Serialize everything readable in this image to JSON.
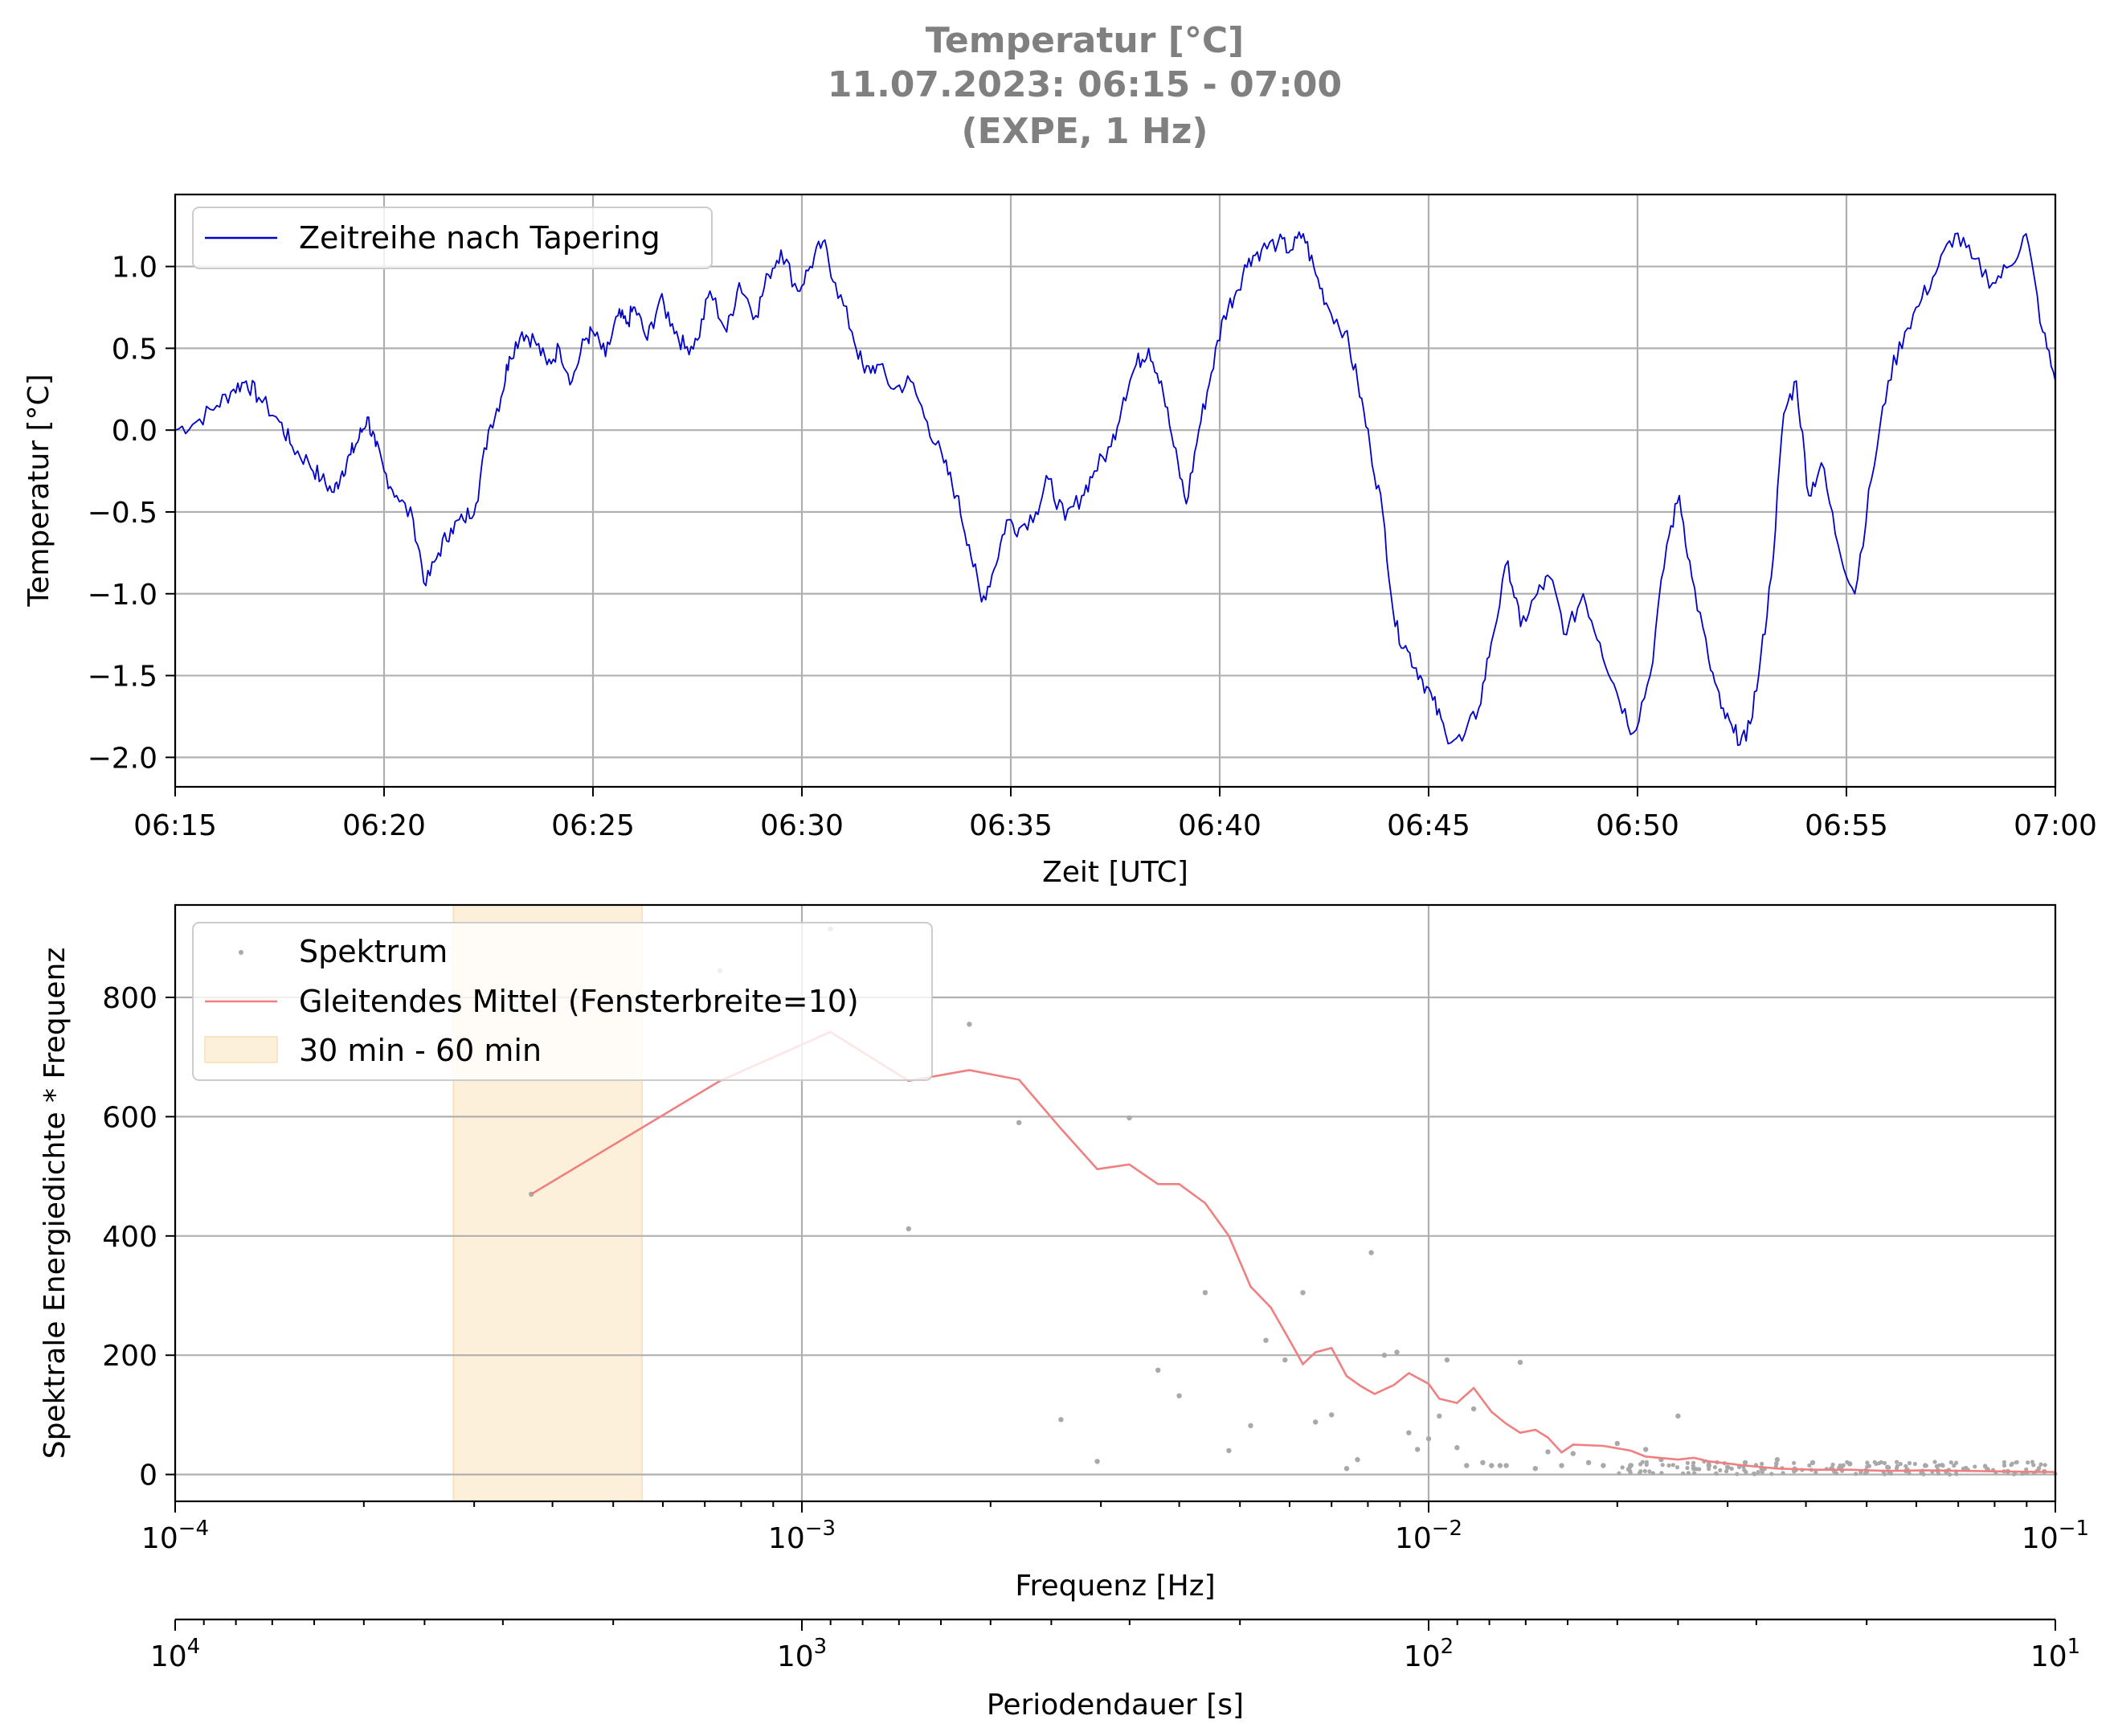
{
  "title_lines": [
    "Temperatur [°C]",
    "11.07.2023:  06:15 -  07:00",
    "(EXPE, 1 Hz)"
  ],
  "colors": {
    "title": "#808080",
    "timeseries": "#0000cd",
    "spectrum_points": "#a9a9a9",
    "moving_average": "#f08080",
    "band": "#fdf0da",
    "grid": "#b0b0b0"
  },
  "chart_data": [
    {
      "type": "line",
      "title": "Temperatur [°C]",
      "xlabel": "Zeit [UTC]",
      "ylabel": "Temperatur [°C]",
      "xlim": [
        "06:15",
        "07:00"
      ],
      "ylim": [
        -2.18,
        1.44
      ],
      "xticks": [
        "06:15",
        "06:20",
        "06:25",
        "06:30",
        "06:35",
        "06:40",
        "06:45",
        "06:50",
        "06:55",
        "07:00"
      ],
      "yticks": [
        1.0,
        0.5,
        0.0,
        -0.5,
        -1.0,
        -1.5,
        -2.0
      ],
      "ytick_labels": [
        "1.0",
        "0.5",
        "0.0",
        "−0.5",
        "−1.0",
        "−1.5",
        "−2.0"
      ],
      "grid": true,
      "legend_position": "upper-left",
      "series": [
        {
          "name": "Zeitreihe nach Tapering",
          "color": "#0000cd",
          "x_minutes_from_0615": [
            0,
            0.5,
            1.0,
            1.4,
            1.7,
            2.0,
            2.5,
            2.8,
            3.2,
            3.5,
            3.8,
            4.0,
            4.2,
            4.4,
            4.6,
            4.8,
            5.0,
            5.3,
            5.7,
            6.0,
            6.3,
            6.6,
            6.9,
            7.2,
            7.5,
            7.8,
            8.0,
            8.3,
            8.6,
            8.9,
            9.2,
            9.5,
            9.8,
            10.0,
            10.3,
            10.6,
            10.8,
            11.0,
            11.3,
            11.6,
            11.9,
            12.2,
            12.5,
            12.8,
            13.2,
            13.5,
            13.9,
            14.2,
            14.5,
            14.9,
            15.2,
            15.5,
            15.8,
            16.2,
            16.5,
            16.8,
            17.2,
            17.6,
            18.0,
            18.4,
            18.7,
            19.0,
            19.3,
            19.6,
            19.9,
            20.2,
            20.6,
            20.9,
            21.3,
            21.7,
            22.0,
            22.4,
            22.7,
            23.0,
            23.3,
            23.6,
            23.9,
            24.2,
            24.5,
            24.8,
            25.1,
            25.4,
            25.7,
            26.0,
            26.4,
            26.7,
            27.0,
            27.3,
            27.6,
            28.0,
            28.3,
            28.6,
            28.9,
            29.2,
            29.5,
            29.8,
            30.1,
            30.4,
            30.8,
            31.2,
            31.5,
            31.9,
            32.2,
            32.6,
            32.9,
            33.3,
            33.7,
            34.1,
            34.5,
            34.9,
            35.3,
            35.7,
            36.0,
            36.3,
            36.7,
            37.0,
            37.3,
            37.6,
            37.9,
            38.2,
            38.5,
            38.8,
            39.1,
            39.4,
            39.8,
            40.2,
            40.6,
            41.0,
            41.4,
            41.8,
            42.2,
            42.6,
            43.0,
            43.5,
            43.9,
            44.3,
            44.7,
            45.0
          ],
          "y": [
            0.0,
            0.05,
            0.15,
            0.25,
            0.3,
            0.2,
            0.05,
            -0.1,
            -0.2,
            -0.3,
            -0.38,
            -0.25,
            -0.15,
            -0.05,
            0.08,
            -0.1,
            -0.25,
            -0.4,
            -0.55,
            -0.95,
            -0.75,
            -0.6,
            -0.55,
            -0.45,
            0.0,
            0.2,
            0.45,
            0.6,
            0.55,
            0.4,
            0.5,
            0.3,
            0.55,
            0.6,
            0.45,
            0.7,
            0.65,
            0.75,
            0.55,
            0.8,
            0.65,
            0.5,
            0.55,
            0.85,
            0.6,
            0.9,
            0.7,
            0.95,
            1.1,
            0.85,
            1.0,
            1.15,
            0.9,
            0.6,
            0.35,
            0.4,
            0.25,
            0.3,
            0.05,
            -0.2,
            -0.4,
            -0.7,
            -1.05,
            -0.85,
            -0.55,
            -0.6,
            -0.5,
            -0.3,
            -0.55,
            -0.4,
            -0.25,
            -0.1,
            0.2,
            0.4,
            0.5,
            0.3,
            -0.1,
            -0.45,
            0.0,
            0.35,
            0.7,
            0.85,
            1.05,
            1.1,
            1.15,
            1.1,
            1.2,
            0.95,
            0.75,
            0.6,
            0.3,
            -0.1,
            -0.5,
            -1.2,
            -1.35,
            -1.5,
            -1.65,
            -1.85,
            -1.9,
            -1.7,
            -1.3,
            -0.8,
            -1.2,
            -1.0,
            -0.9,
            -1.25,
            -1.0,
            -1.3,
            -1.6,
            -1.85,
            -1.5,
            -0.7,
            -0.4,
            -0.9,
            -1.4,
            -1.7,
            -1.85,
            -1.9,
            -1.5,
            -0.9,
            0.1,
            0.3,
            -0.4,
            -0.2,
            -0.7,
            -1.0,
            -0.3,
            0.3,
            0.6,
            0.8,
            1.0,
            1.2,
            1.05,
            0.9,
            1.0,
            1.2,
            0.6,
            0.3,
            0.5,
            0.3,
            0.0,
            -0.2
          ]
        }
      ]
    },
    {
      "type": "scatter",
      "xlabel": "Frequenz [Hz]",
      "ylabel": "Spektrale Energiedichte * Frequenz",
      "xscale": "log",
      "xlim": [
        0.0001,
        0.1
      ],
      "ylim": [
        -45,
        955
      ],
      "xticks": [
        0.0001,
        0.001,
        0.01,
        0.1
      ],
      "xtick_base": "10",
      "xtick_exponents": [
        "−4",
        "−3",
        "−2",
        "−1"
      ],
      "yticks": [
        0,
        200,
        400,
        600,
        800
      ],
      "ytick_labels": [
        "0",
        "200",
        "400",
        "600",
        "800"
      ],
      "grid": true,
      "legend_position": "upper-left",
      "secondary_xaxis": {
        "label": "Periodendauer [s]",
        "xscale": "log",
        "tick_base": "10",
        "tick_exponents": [
          "4",
          "3",
          "2",
          "1"
        ],
        "tick_values": [
          10000,
          1000,
          100,
          10
        ]
      },
      "shaded_band": {
        "name": "30 min - 60 min",
        "x_from": 0.000278,
        "x_to": 0.000556,
        "color": "#fdf0da"
      },
      "series": [
        {
          "name": "Spektrum",
          "kind": "points",
          "color": "#a9a9a9",
          "x": [
            0.00037,
            0.00074,
            0.00111,
            0.00148,
            0.00185,
            0.00222,
            0.00259,
            0.00296,
            0.00333,
            0.0037,
            0.004,
            0.0044,
            0.0048,
            0.0052,
            0.0055,
            0.0059,
            0.0063,
            0.0066,
            0.007,
            0.0074,
            0.0077,
            0.0081,
            0.0085,
            0.0089,
            0.0093,
            0.0096,
            0.01,
            0.0104,
            0.0107,
            0.0111,
            0.0115,
            0.0118,
            0.0122,
            0.0126,
            0.013,
            0.0133,
            0.014,
            0.0148,
            0.0155,
            0.0163,
            0.017,
            0.018,
            0.019,
            0.02,
            0.021,
            0.0222,
            0.0235,
            0.025,
            0.0265,
            0.028,
            0.03,
            0.032,
            0.034,
            0.036,
            0.0385,
            0.041,
            0.044,
            0.047,
            0.05,
            0.054,
            0.058,
            0.062,
            0.067,
            0.072,
            0.078,
            0.084,
            0.09,
            0.096
          ],
          "y": [
            470,
            845,
            915,
            412,
            755,
            590,
            92,
            22,
            598,
            175,
            132,
            305,
            40,
            82,
            225,
            192,
            305,
            88,
            100,
            10,
            25,
            372,
            200,
            205,
            70,
            42,
            60,
            98,
            192,
            45,
            15,
            110,
            20,
            15,
            15,
            15,
            188,
            10,
            38,
            15,
            35,
            20,
            15,
            52,
            15,
            42,
            25,
            98,
            10,
            15,
            12,
            20,
            10,
            25,
            8,
            20,
            10,
            18,
            5,
            12,
            8,
            15,
            5,
            10,
            8,
            5,
            3,
            5
          ]
        },
        {
          "name": "Gleitendes Mittel (Fensterbreite=10)",
          "kind": "line",
          "color": "#f08080",
          "x": [
            0.00037,
            0.00074,
            0.00111,
            0.00148,
            0.00185,
            0.00222,
            0.00259,
            0.00296,
            0.00333,
            0.0037,
            0.004,
            0.0044,
            0.0048,
            0.0052,
            0.0056,
            0.006,
            0.0063,
            0.0066,
            0.007,
            0.0074,
            0.0078,
            0.0082,
            0.0088,
            0.0093,
            0.01,
            0.0104,
            0.0111,
            0.0118,
            0.0126,
            0.0133,
            0.014,
            0.0148,
            0.0155,
            0.0163,
            0.017,
            0.019,
            0.021,
            0.0222,
            0.025,
            0.0265,
            0.028,
            0.032,
            0.036,
            0.041,
            0.047,
            0.054,
            0.062,
            0.072,
            0.084,
            0.1
          ],
          "y": [
            470,
            660,
            742,
            660,
            678,
            662,
            580,
            512,
            520,
            487,
            487,
            455,
            400,
            315,
            280,
            225,
            185,
            205,
            212,
            165,
            148,
            135,
            150,
            170,
            152,
            127,
            120,
            145,
            105,
            85,
            70,
            75,
            62,
            37,
            50,
            48,
            40,
            30,
            25,
            28,
            22,
            15,
            10,
            8,
            8,
            6,
            7,
            6,
            5,
            4
          ]
        }
      ]
    }
  ]
}
